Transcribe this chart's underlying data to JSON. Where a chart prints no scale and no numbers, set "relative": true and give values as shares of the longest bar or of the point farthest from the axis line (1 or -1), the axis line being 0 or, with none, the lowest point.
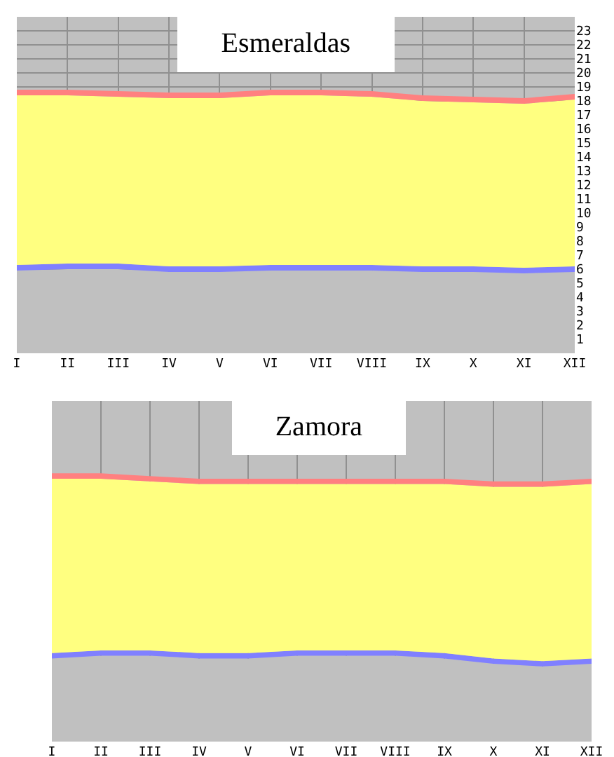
{
  "chart_data": [
    {
      "type": "area",
      "title": "Esmeraldas",
      "stacked": true,
      "grid": true,
      "categories": [
        "I",
        "II",
        "III",
        "IV",
        "V",
        "VI",
        "VII",
        "VIII",
        "IX",
        "X",
        "XI",
        "XII"
      ],
      "ylim": [
        0,
        24
      ],
      "yticks": [
        1,
        2,
        3,
        4,
        5,
        6,
        7,
        8,
        9,
        10,
        11,
        12,
        13,
        14,
        15,
        16,
        17,
        18,
        19,
        20,
        21,
        22,
        23
      ],
      "series": [
        {
          "color": "#c0c0c0",
          "values": [
            5.9,
            6.0,
            6.0,
            5.8,
            5.8,
            5.9,
            5.9,
            5.9,
            5.8,
            5.8,
            5.7,
            5.8
          ]
        },
        {
          "color": "#8080ff",
          "values": [
            0.4,
            0.4,
            0.4,
            0.4,
            0.4,
            0.4,
            0.4,
            0.4,
            0.4,
            0.4,
            0.4,
            0.4
          ]
        },
        {
          "color": "#ffff80",
          "values": [
            12.1,
            12.0,
            11.9,
            12.0,
            12.0,
            12.1,
            12.1,
            12.0,
            11.8,
            11.7,
            11.7,
            11.9
          ]
        },
        {
          "color": "#ff8080",
          "values": [
            0.4,
            0.4,
            0.4,
            0.4,
            0.4,
            0.4,
            0.4,
            0.4,
            0.4,
            0.4,
            0.4,
            0.4
          ]
        }
      ]
    },
    {
      "type": "area",
      "title": "Zamora",
      "stacked": true,
      "relative": true,
      "grid": "x",
      "tick_labels": "x",
      "categories": [
        "I",
        "II",
        "III",
        "IV",
        "V",
        "VI",
        "VII",
        "VIII",
        "IX",
        "X",
        "XI",
        "XII"
      ],
      "series": [
        {
          "color": "#c0c0c0",
          "values": [
            0.31,
            0.32,
            0.32,
            0.31,
            0.31,
            0.32,
            0.32,
            0.32,
            0.31,
            0.29,
            0.28,
            0.29
          ]
        },
        {
          "color": "#8080ff",
          "values": [
            0.02,
            0.02,
            0.02,
            0.02,
            0.02,
            0.02,
            0.02,
            0.02,
            0.02,
            0.02,
            0.02,
            0.02
          ]
        },
        {
          "color": "#ffff80",
          "values": [
            0.65,
            0.64,
            0.63,
            0.63,
            0.63,
            0.62,
            0.62,
            0.62,
            0.63,
            0.64,
            0.65,
            0.65
          ]
        },
        {
          "color": "#ff8080",
          "values": [
            0.02,
            0.02,
            0.02,
            0.02,
            0.02,
            0.02,
            0.02,
            0.02,
            0.02,
            0.02,
            0.02,
            0.02
          ]
        }
      ]
    }
  ]
}
